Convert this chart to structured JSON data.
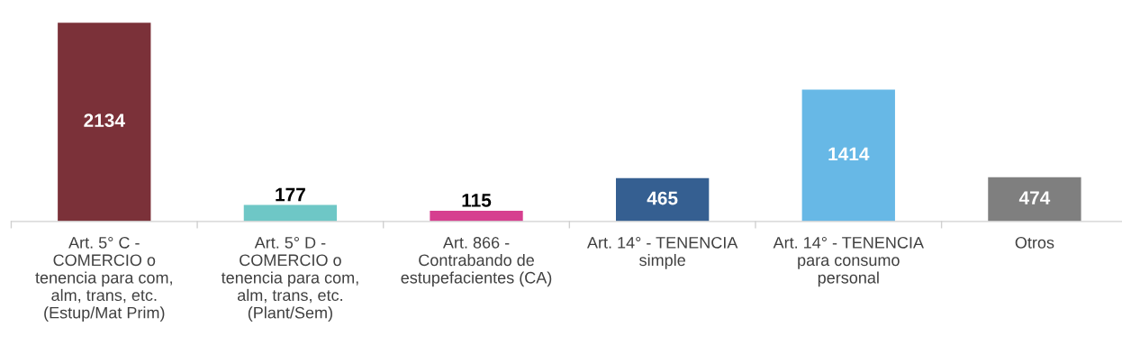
{
  "chart_data": {
    "type": "bar",
    "categories": [
      "Art. 5° C -\nCOMERCIO o\ntenencia para com,\nalm, trans, etc.\n(Estup/Mat Prim)",
      "Art. 5° D -\nCOMERCIO o\ntenencia para com,\nalm, trans, etc.\n(Plant/Sem)",
      "Art. 866 -\nContrabando de\nestupefacientes (CA)",
      "Art. 14° - TENENCIA\nsimple",
      "Art. 14° - TENENCIA\npara consumo\npersonal",
      "Otros"
    ],
    "values": [
      2134,
      177,
      115,
      465,
      1414,
      474
    ],
    "colors": [
      "#7b3139",
      "#6ec7c6",
      "#d63f8f",
      "#355f91",
      "#67b8e6",
      "#7f7f7f"
    ],
    "data_labels": true,
    "grid": false,
    "legend": false
  }
}
